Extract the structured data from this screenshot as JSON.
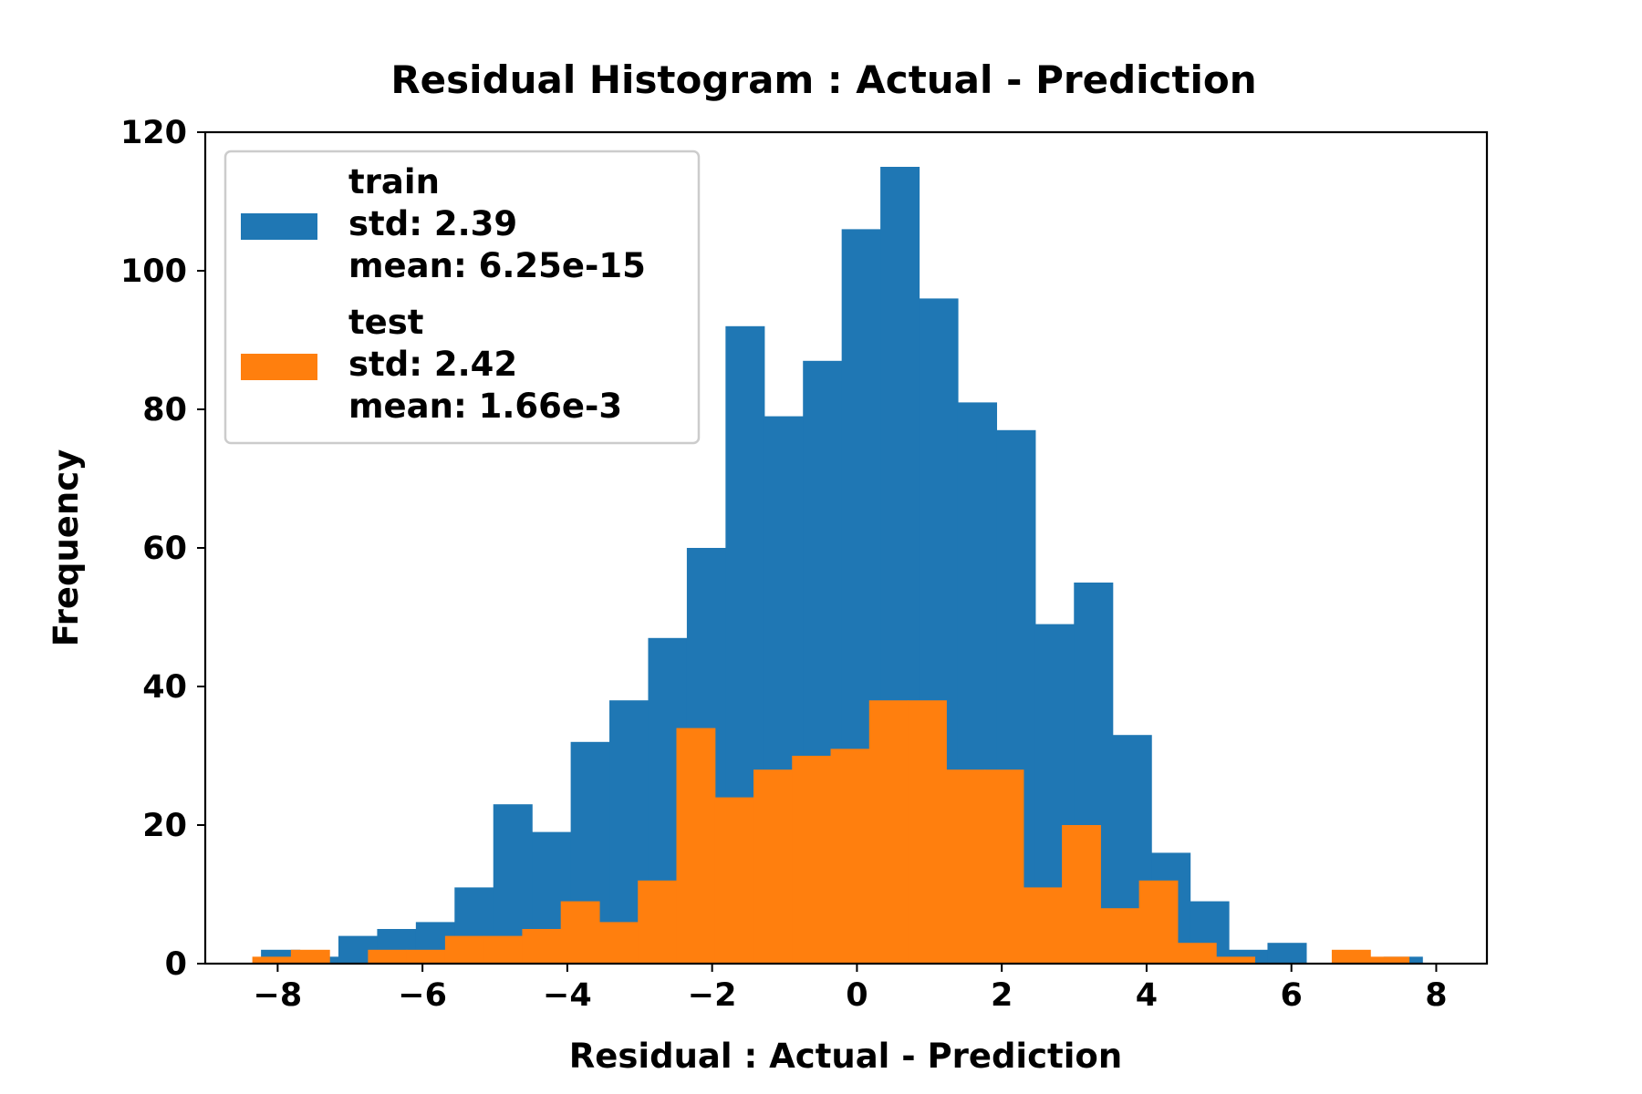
{
  "chart_data": {
    "type": "bar",
    "title": "Residual Histogram : Actual - Prediction",
    "xlabel": "Residual : Actual - Prediction",
    "ylabel": "Frequency",
    "xlim": [
      -9.0,
      8.7
    ],
    "ylim": [
      0,
      120
    ],
    "xticks": [
      -8,
      -6,
      -4,
      -2,
      0,
      2,
      4,
      6,
      8
    ],
    "xtick_labels": [
      "−8",
      "−6",
      "−4",
      "−2",
      "0",
      "2",
      "4",
      "6",
      "8"
    ],
    "yticks": [
      0,
      20,
      40,
      60,
      80,
      100,
      120
    ],
    "ytick_labels": [
      "0",
      "20",
      "40",
      "60",
      "80",
      "100",
      "120"
    ],
    "grid": false,
    "legend_position": "upper-left",
    "series": [
      {
        "name": "train",
        "legend_lines": [
          "train",
          "std: 2.39",
          "mean: 6.25e-15"
        ],
        "color": "#1f77b4",
        "bin_start": -8.23,
        "bin_width": 0.5346,
        "values": [
          2,
          1,
          4,
          5,
          6,
          11,
          23,
          19,
          32,
          38,
          47,
          60,
          92,
          79,
          87,
          106,
          115,
          96,
          81,
          77,
          49,
          55,
          33,
          16,
          9,
          2,
          3,
          0,
          0,
          1
        ]
      },
      {
        "name": "test",
        "legend_lines": [
          "test",
          "std: 2.42",
          "mean: 1.66e-3"
        ],
        "color": "#ff7f0e",
        "bin_start": -8.35,
        "bin_width": 0.5324,
        "values": [
          1,
          2,
          0,
          2,
          2,
          4,
          4,
          5,
          9,
          6,
          12,
          34,
          24,
          28,
          30,
          31,
          38,
          38,
          28,
          28,
          11,
          20,
          8,
          12,
          3,
          1,
          0,
          0,
          2,
          1
        ]
      }
    ]
  }
}
